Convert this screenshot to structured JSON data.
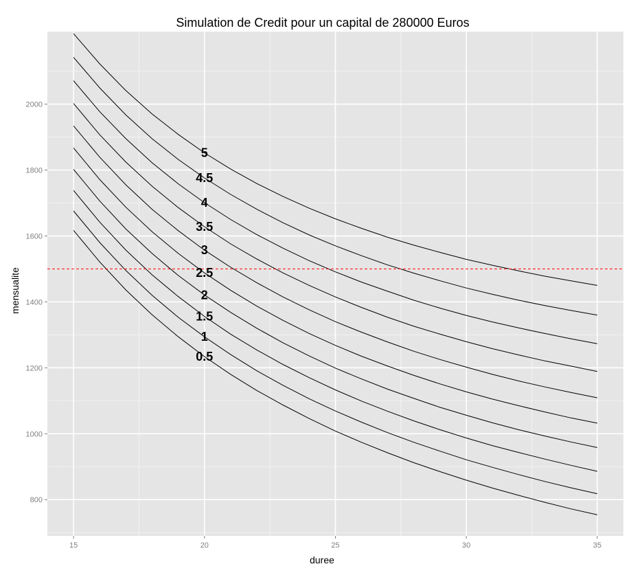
{
  "chart_data": {
    "type": "line",
    "title": "Simulation de Credit pour un capital de 280000 Euros",
    "xlabel": "duree",
    "ylabel": "mensualite",
    "xlim": [
      14,
      36
    ],
    "ylim": [
      690,
      2220
    ],
    "x_ticks": [
      15,
      20,
      25,
      30,
      35
    ],
    "y_ticks": [
      800,
      1000,
      1200,
      1400,
      1600,
      1800,
      2000
    ],
    "grid": true,
    "legend": "none",
    "principal": 280000,
    "x": [
      15,
      16,
      17,
      18,
      19,
      20,
      21,
      22,
      23,
      24,
      25,
      26,
      27,
      28,
      29,
      30,
      31,
      32,
      33,
      34,
      35
    ],
    "series": [
      {
        "label": "0.5",
        "rate": 0.5,
        "values": [
          1617,
          1521,
          1436,
          1361,
          1294,
          1234,
          1180,
          1131,
          1087,
          1046,
          1008,
          974,
          942,
          912,
          885,
          859,
          835,
          813,
          792,
          772,
          754
        ]
      },
      {
        "label": "1",
        "rate": 1,
        "values": [
          1676,
          1580,
          1495,
          1420,
          1353,
          1294,
          1240,
          1191,
          1147,
          1106,
          1069,
          1035,
          1003,
          974,
          947,
          921,
          898,
          876,
          855,
          836,
          818
        ]
      },
      {
        "label": "1.5",
        "rate": 1.5,
        "values": [
          1738,
          1642,
          1557,
          1482,
          1416,
          1356,
          1302,
          1254,
          1210,
          1170,
          1133,
          1099,
          1068,
          1039,
          1012,
          987,
          964,
          943,
          923,
          904,
          886
        ]
      },
      {
        "label": "2",
        "rate": 2,
        "values": [
          1802,
          1706,
          1621,
          1547,
          1480,
          1421,
          1368,
          1320,
          1276,
          1236,
          1199,
          1166,
          1135,
          1107,
          1080,
          1056,
          1033,
          1012,
          993,
          975,
          958
        ]
      },
      {
        "label": "2.5",
        "rate": 2.5,
        "values": [
          1867,
          1771,
          1687,
          1613,
          1547,
          1488,
          1435,
          1387,
          1344,
          1304,
          1268,
          1235,
          1205,
          1177,
          1151,
          1127,
          1105,
          1085,
          1066,
          1048,
          1032
        ]
      },
      {
        "label": "3",
        "rate": 3,
        "values": [
          1934,
          1839,
          1755,
          1681,
          1616,
          1557,
          1505,
          1458,
          1415,
          1376,
          1340,
          1308,
          1278,
          1250,
          1225,
          1202,
          1180,
          1160,
          1142,
          1125,
          1109
        ]
      },
      {
        "label": "3.5",
        "rate": 3.5,
        "values": [
          2002,
          1907,
          1824,
          1751,
          1686,
          1628,
          1576,
          1530,
          1488,
          1450,
          1415,
          1383,
          1353,
          1326,
          1302,
          1279,
          1258,
          1239,
          1221,
          1205,
          1189
        ]
      },
      {
        "label": "4",
        "rate": 4,
        "values": [
          2071,
          1977,
          1895,
          1822,
          1758,
          1701,
          1650,
          1604,
          1563,
          1525,
          1491,
          1460,
          1432,
          1405,
          1381,
          1359,
          1339,
          1321,
          1304,
          1288,
          1273
        ]
      },
      {
        "label": "4.5",
        "rate": 4.5,
        "values": [
          2142,
          2049,
          1967,
          1895,
          1832,
          1776,
          1726,
          1681,
          1640,
          1603,
          1570,
          1540,
          1512,
          1487,
          1464,
          1442,
          1423,
          1405,
          1389,
          1374,
          1360
        ]
      },
      {
        "label": "5",
        "rate": 5,
        "values": [
          2214,
          2122,
          2041,
          1970,
          1908,
          1852,
          1803,
          1759,
          1720,
          1684,
          1652,
          1623,
          1596,
          1572,
          1550,
          1529,
          1511,
          1494,
          1478,
          1464,
          1450
        ]
      }
    ],
    "hline": {
      "y": 1500,
      "color": "#ff0000",
      "style": "dashed"
    },
    "label_x": 20,
    "colors": {
      "panel": "#e5e5e5",
      "grid_major": "#ffffff",
      "grid_minor": "#f2f2f2",
      "line": "#000000",
      "tick_label": "#7f7f7f"
    }
  }
}
